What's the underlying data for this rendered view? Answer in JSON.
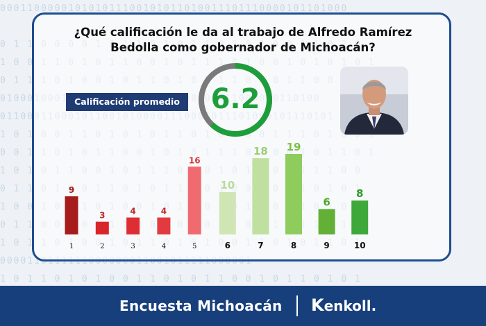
{
  "question": "¿Qué calificación le da al trabajo de Alfredo Ramírez Bedolla como gobernador de Michoacán?",
  "average_label": "Calificación promedio",
  "average_value": "6.2",
  "average_score": 6.2,
  "footer": {
    "survey": "Encuesta Michoacán",
    "brand_k": "K",
    "brand_rest": "enkoll."
  },
  "colors": {
    "navy": "#1f3b73",
    "gauge_green": "#1e9e3b",
    "gauge_grey": "#7a7a7a"
  },
  "chart_data": {
    "type": "bar",
    "categories": [
      "1",
      "2",
      "3",
      "4",
      "5",
      "6",
      "7",
      "8",
      "9",
      "10"
    ],
    "values": [
      9,
      3,
      4,
      4,
      16,
      10,
      18,
      19,
      6,
      8
    ],
    "colors": [
      "#a61b1b",
      "#d8262b",
      "#df2e33",
      "#e23a3f",
      "#ef6b6f",
      "#cfe6b4",
      "#bfe0a0",
      "#8fcc5e",
      "#62b036",
      "#3ea83a"
    ],
    "label_colors": [
      "#a61b1b",
      "#c22a2a",
      "#c22a2a",
      "#c22a2a",
      "#d9383c",
      "#b9d99c",
      "#9fcf73",
      "#7cbf4a",
      "#4ea62b",
      "#2f9a2f"
    ],
    "title": "",
    "xlabel": "",
    "ylabel": "",
    "ylim": [
      0,
      19
    ]
  }
}
